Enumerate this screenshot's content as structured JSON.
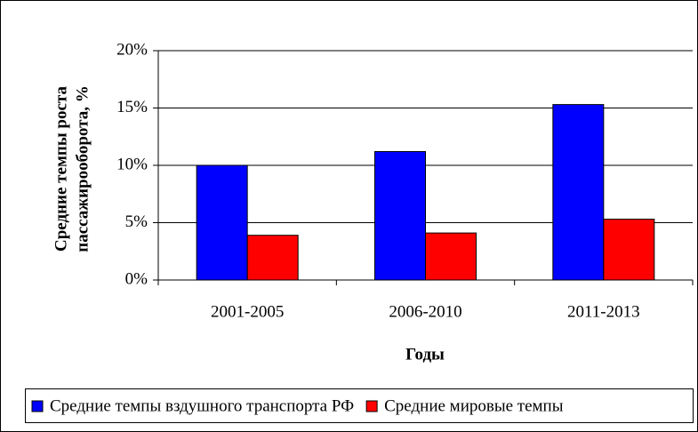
{
  "chart_data": {
    "type": "bar",
    "ylabel": [
      "Средние темпы роста",
      "пассажирооборота, %"
    ],
    "xlabel": "Годы",
    "categories": [
      "2001-2005",
      "2006-2010",
      "2011-2013"
    ],
    "series": [
      {
        "name": "Средние темпы вздушного транспорта РФ",
        "color": "#0000ff",
        "values": [
          10,
          11.2,
          15.3
        ]
      },
      {
        "name": "Средние мировые темпы",
        "color": "#ff0000",
        "values": [
          3.9,
          4.1,
          5.3
        ]
      }
    ],
    "ylim": [
      0,
      20
    ],
    "yticks": [
      {
        "value": 0,
        "label": "0%"
      },
      {
        "value": 5,
        "label": "5%"
      },
      {
        "value": 10,
        "label": "10%"
      },
      {
        "value": 15,
        "label": "15%"
      },
      {
        "value": 20,
        "label": "20%"
      }
    ],
    "grid": true,
    "legend": "bottom"
  }
}
